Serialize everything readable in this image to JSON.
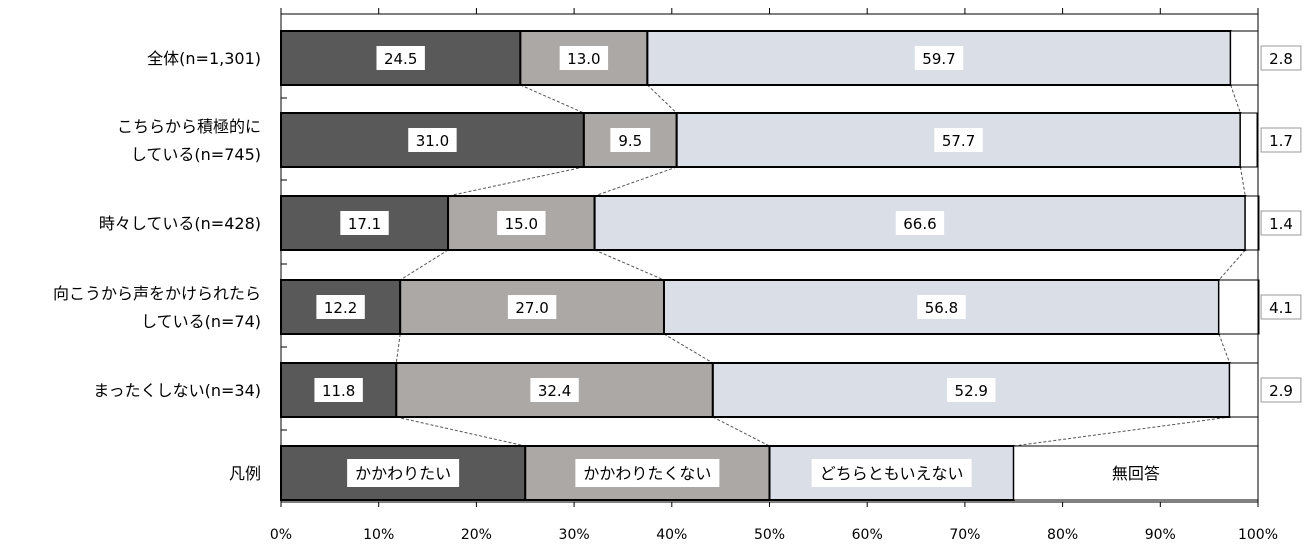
{
  "chart_data": {
    "type": "bar",
    "orientation": "horizontal",
    "stacked": true,
    "percent_stacked": true,
    "categories": [
      [
        "全体(n=1,301)"
      ],
      [
        "こちらから積極的に",
        "している(n=745)"
      ],
      [
        "時々している(n=428)"
      ],
      [
        "向こうから声をかけられたら",
        "している(n=74)"
      ],
      [
        "まったくしない(n=34)"
      ]
    ],
    "series": [
      {
        "name": "かかわりたい",
        "color": "#595959",
        "values": [
          24.5,
          31.0,
          17.1,
          12.2,
          11.8
        ]
      },
      {
        "name": "かかわりたくない",
        "color": "#aca8a6",
        "values": [
          13.0,
          9.5,
          15.0,
          27.0,
          32.4
        ]
      },
      {
        "name": "どちらともいえない",
        "color": "#d9dee7",
        "values": [
          59.7,
          57.7,
          66.6,
          56.8,
          52.9
        ]
      },
      {
        "name": "無回答",
        "color": "#ffffff",
        "values": [
          2.8,
          1.7,
          1.4,
          4.1,
          2.9
        ]
      }
    ],
    "legend_row": {
      "label": "凡例",
      "labels": [
        "かかわりたい",
        "かかわりたくない",
        "どちらともいえない",
        "無回答"
      ]
    },
    "x_ticks": [
      "0%",
      "10%",
      "20%",
      "30%",
      "40%",
      "50%",
      "60%",
      "70%",
      "80%",
      "90%",
      "100%"
    ],
    "xlim": [
      0,
      100
    ],
    "grid": false,
    "series_connector_lines": true
  }
}
